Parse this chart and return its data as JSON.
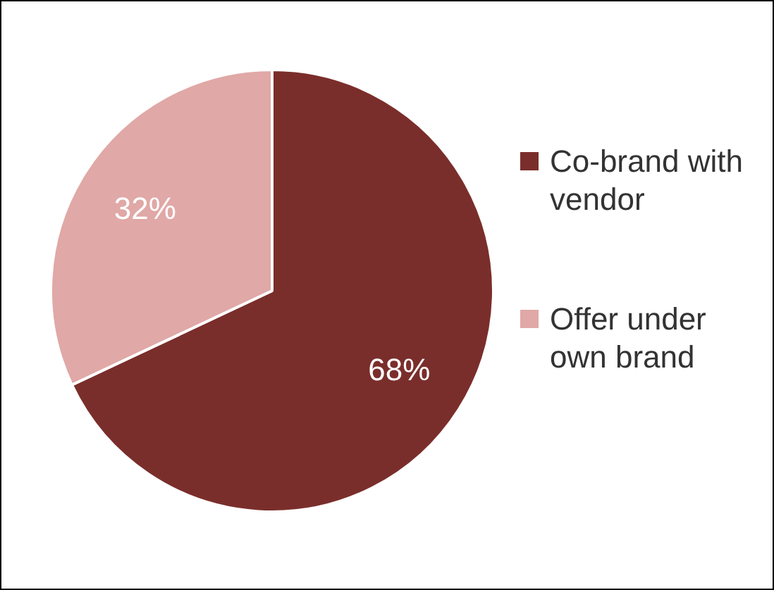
{
  "chart_data": {
    "type": "pie",
    "categories": [
      "Co-brand with vendor",
      "Offer under own brand"
    ],
    "values": [
      68,
      32
    ],
    "colors": [
      "#7a2e2b",
      "#e0a8a6"
    ],
    "value_labels": [
      "68%",
      "32%"
    ],
    "legend": "right"
  }
}
